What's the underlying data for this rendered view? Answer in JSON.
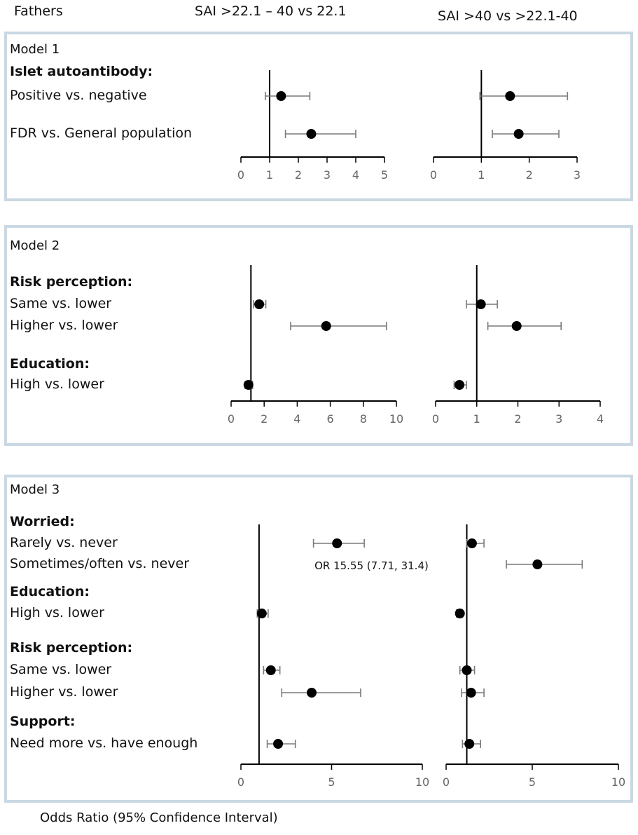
{
  "header": {
    "group": "Fathers",
    "col1": "SAI >22.1 – 40 vs 22.1",
    "col2": "SAI >40 vs >22.1-40"
  },
  "footer": "Odds Ratio (95% Confidence Interval)",
  "colors": {
    "panel_border": "#c9d8e3",
    "point": "#000000",
    "whisker": "#7a7a7a"
  },
  "chart_data": [
    {
      "type": "scatter",
      "title": "Model 1",
      "rows": [
        {
          "label": "Islet autoantibody:",
          "header": true
        },
        {
          "label": "Positive vs. negative"
        },
        {
          "label": "FDR vs. General population"
        }
      ],
      "subplots": [
        {
          "xlim": [
            0,
            5
          ],
          "ticks": [
            0,
            1,
            2,
            3,
            4,
            5
          ],
          "reference": 1,
          "estimates": [
            {
              "row": 1,
              "or": 1.4,
              "lo": 0.85,
              "hi": 2.4
            },
            {
              "row": 2,
              "or": 2.45,
              "lo": 1.55,
              "hi": 4.0
            }
          ]
        },
        {
          "xlim": [
            0,
            3
          ],
          "ticks": [
            0,
            1,
            2,
            3
          ],
          "reference": 1,
          "estimates": [
            {
              "row": 1,
              "or": 1.6,
              "lo": 0.97,
              "hi": 2.8
            },
            {
              "row": 2,
              "or": 1.78,
              "lo": 1.23,
              "hi": 2.62
            }
          ]
        }
      ]
    },
    {
      "type": "scatter",
      "title": "Model 2",
      "rows": [
        {
          "label": "Risk perception:",
          "header": true
        },
        {
          "label": "Same vs. lower"
        },
        {
          "label": "Higher vs. lower"
        },
        {
          "label": "Education:",
          "header": true
        },
        {
          "label": "High vs. lower"
        }
      ],
      "subplots": [
        {
          "xlim": [
            0,
            10
          ],
          "ticks": [
            0,
            2,
            4,
            6,
            8,
            10
          ],
          "reference": 1.2,
          "estimates": [
            {
              "row": 1,
              "or": 1.7,
              "lo": 1.35,
              "hi": 2.1
            },
            {
              "row": 2,
              "or": 5.75,
              "lo": 3.6,
              "hi": 9.4
            },
            {
              "row": 4,
              "or": 1.05,
              "lo": 0.85,
              "hi": 1.3
            }
          ]
        },
        {
          "xlim": [
            0,
            4
          ],
          "ticks": [
            0,
            1,
            2,
            3,
            4
          ],
          "reference": 1,
          "estimates": [
            {
              "row": 1,
              "or": 1.1,
              "lo": 0.75,
              "hi": 1.5
            },
            {
              "row": 2,
              "or": 1.97,
              "lo": 1.27,
              "hi": 3.05
            },
            {
              "row": 4,
              "or": 0.58,
              "lo": 0.45,
              "hi": 0.75
            }
          ]
        }
      ]
    },
    {
      "type": "scatter",
      "title": "Model 3",
      "rows": [
        {
          "label": "Worried:",
          "header": true
        },
        {
          "label": "Rarely vs. never"
        },
        {
          "label": "Sometimes/often  vs. never"
        },
        {
          "label": "Education:",
          "header": true
        },
        {
          "label": "High vs. lower"
        },
        {
          "label": "Risk perception:",
          "header": true
        },
        {
          "label": "Same vs. lower"
        },
        {
          "label": "Higher vs. lower"
        },
        {
          "label": "Support:",
          "header": true
        },
        {
          "label": "Need  more vs. have enough"
        }
      ],
      "subplots": [
        {
          "xlim": [
            0,
            10
          ],
          "ticks": [
            0,
            5,
            10
          ],
          "reference": 1,
          "estimates": [
            {
              "row": 1,
              "or": 5.3,
              "lo": 4.0,
              "hi": 6.8
            },
            {
              "row": 2,
              "annotation": "OR 15.55 (7.71, 31.4)"
            },
            {
              "row": 4,
              "or": 1.15,
              "lo": 0.9,
              "hi": 1.5
            },
            {
              "row": 6,
              "or": 1.65,
              "lo": 1.25,
              "hi": 2.15
            },
            {
              "row": 7,
              "or": 3.9,
              "lo": 2.25,
              "hi": 6.6
            },
            {
              "row": 9,
              "or": 2.05,
              "lo": 1.45,
              "hi": 3.0
            }
          ]
        },
        {
          "xlim": [
            0,
            10
          ],
          "ticks": [
            0,
            5,
            10
          ],
          "reference": 1.2,
          "estimates": [
            {
              "row": 1,
              "or": 1.5,
              "lo": 1.2,
              "hi": 2.2
            },
            {
              "row": 2,
              "or": 5.3,
              "lo": 3.5,
              "hi": 7.9
            },
            {
              "row": 4,
              "or": 0.8,
              "lo": 0.6,
              "hi": 0.95
            },
            {
              "row": 6,
              "or": 1.2,
              "lo": 0.8,
              "hi": 1.65
            },
            {
              "row": 7,
              "or": 1.45,
              "lo": 0.9,
              "hi": 2.2
            },
            {
              "row": 9,
              "or": 1.35,
              "lo": 0.95,
              "hi": 2.0
            }
          ]
        }
      ]
    }
  ]
}
